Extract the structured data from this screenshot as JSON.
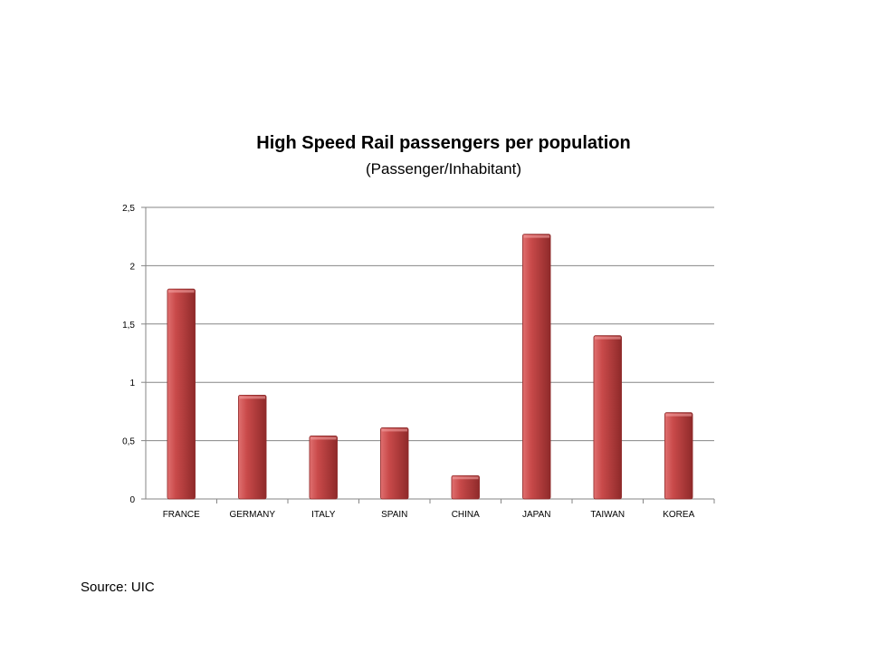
{
  "source": "Source: UIC",
  "colors": {
    "bar": "#c94a4a",
    "bar_light": "#e07070",
    "bar_dark": "#8f2a2a",
    "gridline": "#868686",
    "axis": "#868686",
    "text": "#000000"
  },
  "chart_data": {
    "type": "bar",
    "title": "High Speed Rail passengers per population",
    "subtitle": "(Passenger/Inhabitant)",
    "xlabel": "",
    "ylabel": "",
    "categories": [
      "FRANCE",
      "GERMANY",
      "ITALY",
      "SPAIN",
      "CHINA",
      "JAPAN",
      "TAIWAN",
      "KOREA"
    ],
    "values": [
      1.8,
      0.89,
      0.54,
      0.61,
      0.2,
      2.27,
      1.4,
      0.74
    ],
    "ylim": [
      0,
      2.5
    ],
    "yticks": [
      0,
      0.5,
      1,
      1.5,
      2,
      2.5
    ],
    "ytick_labels": [
      "0",
      "0,5",
      "1",
      "1,5",
      "2",
      "2,5"
    ],
    "grid": true,
    "legend": "none"
  }
}
